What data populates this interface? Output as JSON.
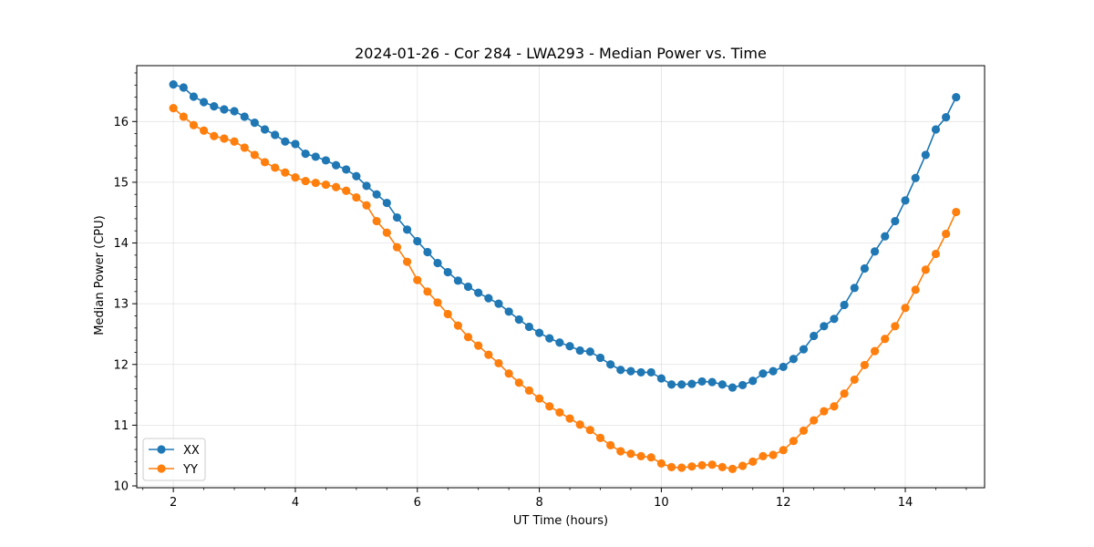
{
  "chart_data": {
    "type": "line",
    "title": "2024-01-26 - Cor 284 - LWA293 - Median Power vs. Time",
    "xlabel": "UT Time (hours)",
    "ylabel": "Median Power (CPU)",
    "xlim": [
      1.4,
      15.3
    ],
    "ylim": [
      9.97,
      16.92
    ],
    "xticks": [
      2,
      4,
      6,
      8,
      10,
      12,
      14
    ],
    "yticks": [
      10,
      11,
      12,
      13,
      14,
      15,
      16
    ],
    "grid": true,
    "legend_position": "lower-left",
    "x": [
      2.0,
      2.167,
      2.333,
      2.5,
      2.667,
      2.833,
      3.0,
      3.167,
      3.333,
      3.5,
      3.667,
      3.833,
      4.0,
      4.167,
      4.333,
      4.5,
      4.667,
      4.833,
      5.0,
      5.167,
      5.333,
      5.5,
      5.667,
      5.833,
      6.0,
      6.167,
      6.333,
      6.5,
      6.667,
      6.833,
      7.0,
      7.167,
      7.333,
      7.5,
      7.667,
      7.833,
      8.0,
      8.167,
      8.333,
      8.5,
      8.667,
      8.833,
      9.0,
      9.167,
      9.333,
      9.5,
      9.667,
      9.833,
      10.0,
      10.167,
      10.333,
      10.5,
      10.667,
      10.833,
      11.0,
      11.167,
      11.333,
      11.5,
      11.667,
      11.833,
      12.0,
      12.167,
      12.333,
      12.5,
      12.667,
      12.833,
      13.0,
      13.167,
      13.333,
      13.5,
      13.667,
      13.833,
      14.0,
      14.167,
      14.333,
      14.5,
      14.667,
      14.833
    ],
    "series": [
      {
        "name": "XX",
        "color": "#1f77b4",
        "values": [
          16.61,
          16.56,
          16.41,
          16.32,
          16.25,
          16.2,
          16.17,
          16.08,
          15.98,
          15.87,
          15.78,
          15.67,
          15.63,
          15.47,
          15.42,
          15.36,
          15.28,
          15.21,
          15.1,
          14.94,
          14.8,
          14.66,
          14.42,
          14.22,
          14.03,
          13.85,
          13.67,
          13.52,
          13.38,
          13.28,
          13.18,
          13.09,
          13.0,
          12.87,
          12.74,
          12.62,
          12.52,
          12.43,
          12.36,
          12.3,
          12.23,
          12.21,
          12.11,
          12.0,
          11.91,
          11.89,
          11.87,
          11.87,
          11.77,
          11.67,
          11.67,
          11.68,
          11.72,
          11.71,
          11.67,
          11.62,
          11.66,
          11.73,
          11.85,
          11.89,
          11.96,
          12.09,
          12.25,
          12.47,
          12.63,
          12.75,
          12.98,
          13.26,
          13.58,
          13.86,
          14.11,
          14.36,
          14.7,
          15.07,
          15.45,
          15.87,
          16.07,
          16.4
        ]
      },
      {
        "name": "YY",
        "color": "#ff7f0e",
        "values": [
          16.22,
          16.08,
          15.94,
          15.85,
          15.76,
          15.72,
          15.67,
          15.57,
          15.45,
          15.33,
          15.24,
          15.16,
          15.08,
          15.02,
          14.99,
          14.96,
          14.92,
          14.86,
          14.75,
          14.62,
          14.36,
          14.17,
          13.93,
          13.69,
          13.39,
          13.2,
          13.02,
          12.83,
          12.64,
          12.45,
          12.31,
          12.16,
          12.02,
          11.85,
          11.7,
          11.57,
          11.44,
          11.31,
          11.21,
          11.11,
          11.01,
          10.92,
          10.79,
          10.67,
          10.57,
          10.53,
          10.49,
          10.47,
          10.37,
          10.31,
          10.3,
          10.32,
          10.34,
          10.35,
          10.31,
          10.28,
          10.33,
          10.4,
          10.49,
          10.51,
          10.59,
          10.74,
          10.91,
          11.08,
          11.23,
          11.31,
          11.52,
          11.75,
          11.99,
          12.22,
          12.42,
          12.63,
          12.93,
          13.23,
          13.56,
          13.82,
          14.15,
          14.51
        ]
      }
    ]
  }
}
